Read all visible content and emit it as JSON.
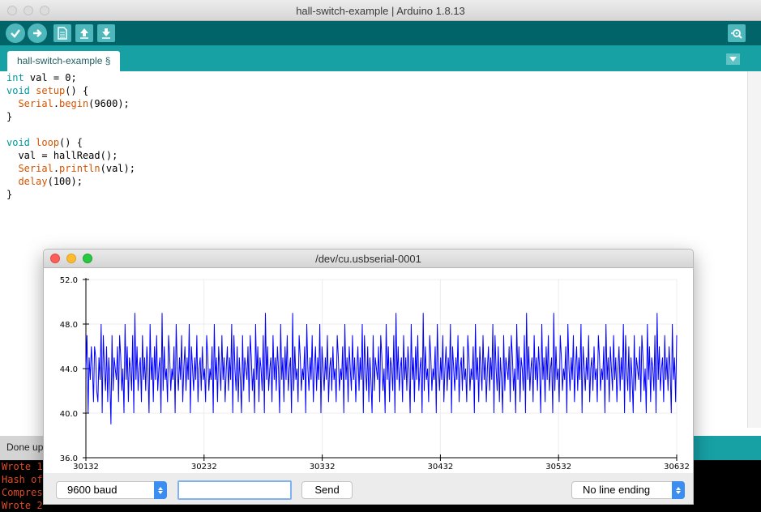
{
  "window": {
    "title": "hall-switch-example | Arduino 1.8.13"
  },
  "toolbar": {
    "buttons": [
      {
        "name": "verify",
        "icon": "check-icon"
      },
      {
        "name": "upload",
        "icon": "arrow-right-icon"
      },
      {
        "name": "new",
        "icon": "new-file-icon"
      },
      {
        "name": "open",
        "icon": "arrow-up-icon"
      },
      {
        "name": "save",
        "icon": "arrow-down-icon"
      },
      {
        "name": "serial-monitor",
        "icon": "magnifier-icon"
      }
    ]
  },
  "tab": {
    "label": "hall-switch-example §"
  },
  "editor": {
    "lines": [
      "int val = 0;",
      "void setup() {",
      "  Serial.begin(9600);",
      "}",
      "",
      "void loop() {",
      "  val = hallRead();",
      "  Serial.println(val);",
      "  delay(100);",
      "}"
    ]
  },
  "status": {
    "message": "Done up"
  },
  "console": {
    "lines": [
      "Wrote 1",
      "Hash of",
      "Compres",
      "Wrote 2"
    ]
  },
  "plotter": {
    "title": "/dev/cu.usbserial-0001",
    "baud_label": "9600 baud",
    "send_label": "Send",
    "send_value": "",
    "line_ending_label": "No line ending"
  },
  "colors": {
    "toolbar_dark": "#006468",
    "tabbar": "#17a1a5",
    "button_light": "#4db7bb",
    "keyword": "#00979c",
    "function": "#d35400",
    "series": "#0000ff",
    "console_text": "#e34c26"
  },
  "chart_data": {
    "type": "line",
    "ylim": [
      36.0,
      52.0
    ],
    "yticks": [
      36.0,
      40.0,
      44.0,
      48.0,
      52.0
    ],
    "ytick_labels": [
      "36.0",
      "40.0",
      "44.0",
      "48.0",
      "52.0"
    ],
    "xlim": [
      30132,
      30632
    ],
    "xticks": [
      30132,
      30232,
      30332,
      30432,
      30532,
      30632
    ],
    "xtick_labels": [
      "30132",
      "30232",
      "30332",
      "30432",
      "30532",
      "30632"
    ],
    "grid": true,
    "series": [
      {
        "color": "#0000ff",
        "y": [
          44,
          47,
          40,
          45,
          43,
          46,
          44,
          41,
          46,
          45,
          42,
          41,
          45,
          43,
          48,
          40,
          47,
          44,
          42,
          46,
          41,
          45,
          43,
          39,
          47,
          42,
          45,
          44,
          43,
          46,
          41,
          47,
          45,
          42,
          44,
          40,
          48,
          43,
          46,
          41,
          45,
          44,
          42,
          47,
          40,
          49,
          43,
          46,
          42,
          44,
          45,
          41,
          47,
          43,
          45,
          42,
          46,
          44,
          40,
          48,
          43,
          45,
          41,
          46,
          43,
          47,
          42,
          44,
          45,
          40,
          49,
          42,
          46,
          43,
          44,
          41,
          47,
          45,
          42,
          44,
          43,
          46,
          40,
          48,
          44,
          42,
          45,
          43,
          47,
          41,
          44,
          46,
          42,
          45,
          43,
          48,
          40,
          46,
          44,
          42,
          45,
          43,
          47,
          41,
          44,
          45,
          42,
          46,
          43,
          44,
          41,
          47,
          45,
          42,
          44,
          43,
          46,
          40,
          48,
          43,
          45,
          41,
          46,
          44,
          42,
          47,
          43,
          45,
          41,
          44,
          46,
          42,
          45,
          43,
          48,
          40,
          47,
          44,
          42,
          46,
          41,
          45,
          43,
          40,
          47,
          42,
          45,
          44,
          43,
          46,
          41,
          47,
          45,
          42,
          44,
          40,
          48,
          43,
          46,
          41,
          45,
          44,
          42,
          47,
          40,
          49,
          43,
          46,
          42,
          44,
          45,
          41,
          47,
          43,
          45,
          42,
          46,
          44,
          40,
          48,
          43,
          45,
          41,
          46,
          43,
          47,
          42,
          44,
          45,
          40,
          49,
          42,
          46,
          43,
          44,
          41,
          47,
          45,
          42,
          44,
          43,
          46,
          40,
          48,
          44,
          42,
          45,
          43,
          47,
          41,
          44,
          46,
          42,
          45,
          43,
          48,
          40,
          46,
          44,
          42,
          45,
          43,
          47,
          41,
          44,
          45,
          42,
          46,
          43,
          44,
          41,
          47,
          45,
          42,
          44,
          43,
          46,
          40,
          48,
          43,
          45,
          41,
          46,
          44,
          42,
          47,
          43,
          45,
          41,
          44,
          46,
          42,
          45,
          43,
          48,
          40,
          47,
          44,
          42,
          46,
          41,
          45,
          43,
          40,
          47,
          42,
          45,
          44,
          43,
          46,
          41,
          47,
          45,
          42,
          44,
          40,
          48,
          43,
          46,
          41,
          45,
          44,
          42,
          47,
          40,
          49,
          43,
          46,
          42,
          44,
          45,
          41,
          47,
          43,
          45,
          42,
          46,
          44,
          40,
          48,
          43,
          45,
          41,
          46,
          43,
          47,
          42,
          44,
          45,
          40,
          49,
          42,
          46,
          43,
          44,
          41,
          47,
          45,
          42,
          44,
          43,
          46,
          40,
          48,
          44,
          42,
          45,
          43,
          47,
          41,
          44,
          46,
          42,
          45,
          43,
          48,
          40,
          46,
          44,
          42,
          45,
          43,
          47,
          41,
          44,
          45,
          42,
          46,
          43,
          44,
          41,
          47,
          45,
          42,
          44,
          43,
          46,
          40,
          48,
          43,
          45,
          41,
          46,
          44,
          42,
          47,
          43,
          45,
          41,
          44,
          46,
          42,
          45,
          43,
          48,
          40,
          47,
          44,
          42,
          46,
          41,
          45,
          43,
          40,
          47,
          42,
          45,
          44,
          43,
          46,
          41,
          47,
          45,
          42,
          44,
          40,
          48,
          43,
          46,
          41,
          45,
          44,
          42,
          47,
          40,
          49,
          43,
          46,
          42,
          44,
          45,
          41,
          47,
          43,
          45,
          42,
          46,
          44,
          40,
          48,
          43,
          45,
          41,
          46,
          43,
          47,
          42,
          44,
          45,
          40,
          49,
          42,
          46,
          43,
          44,
          41,
          47,
          45,
          42,
          44,
          43,
          46,
          40,
          48,
          44,
          42,
          45,
          43,
          47,
          41,
          44,
          46,
          42,
          45,
          43,
          48,
          40,
          46,
          44,
          42,
          45,
          43,
          47,
          41,
          44,
          45,
          42,
          46,
          43,
          44,
          41,
          47,
          45,
          42,
          44,
          43,
          46,
          40,
          48,
          43,
          45,
          41,
          46,
          44,
          42,
          47,
          43,
          45,
          41,
          44,
          46,
          42,
          45,
          43,
          48,
          40,
          47,
          44,
          42,
          46,
          41,
          45,
          43,
          40,
          47,
          42,
          45,
          44,
          43,
          46,
          41,
          47,
          45,
          42,
          44,
          40,
          48,
          43,
          46,
          41,
          45,
          44,
          42,
          47,
          40,
          49,
          43,
          46,
          42,
          44,
          45,
          41,
          47,
          43,
          45,
          42,
          46,
          44,
          40,
          48,
          43,
          45,
          41,
          47
        ]
      }
    ]
  }
}
